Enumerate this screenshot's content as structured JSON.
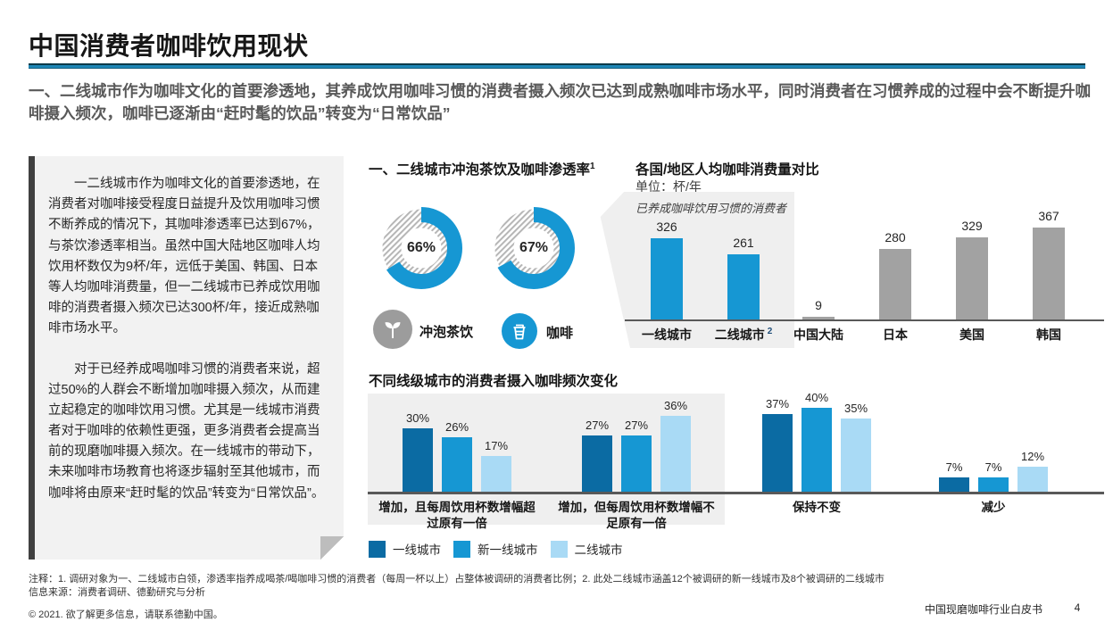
{
  "page": {
    "title": "中国消费者咖啡饮用现状",
    "subtitle": "一、二线城市作为咖啡文化的首要渗透地，其养成饮用咖啡习惯的消费者摄入频次已达到成熟咖啡市场水平，同时消费者在习惯养成的过程中会不断提升咖啡摄入频次，咖啡已逐渐由“赶时髦的饮品”转变为“日常饮品”"
  },
  "sidebar": {
    "p1": "一二线城市作为咖啡文化的首要渗透地，在消费者对咖啡接受程度日益提升及饮用咖啡习惯不断养成的情况下，其咖啡渗透率已达到67%，与茶饮渗透率相当。虽然中国大陆地区咖啡人均饮用杯数仅为9杯/年，远低于美国、韩国、日本等人均咖啡消费量，但一二线城市已养成饮用咖啡的消费者摄入频次已达300杯/年，接近成熟咖啡市场水平。",
    "p2": "对于已经养成喝咖啡习惯的消费者来说，超过50%的人群会不断增加咖啡摄入频次，从而建立起稳定的咖啡饮用习惯。尤其是一线城市消费者对于咖啡的依赖性更强，更多消费者会提高当前的现磨咖啡摄入频次。在一线城市的带动下，未来咖啡市场教育也将逐步辐射至其他城市，而咖啡将由原来“赶时髦的饮品”转变为“日常饮品”。"
  },
  "chart_data": [
    {
      "type": "donut",
      "title": "一、二线城市冲泡茶饮及咖啡渗透率",
      "title_sup": "1",
      "arc_color": "#1697d3",
      "track_style": "diagonal-hatch",
      "track_stripe_color": "#b5b5b5",
      "donuts": [
        {
          "label": "冲泡茶饮",
          "value_pct": 66,
          "icon": "tea-sprout-icon",
          "icon_bg": "#9c9c9c"
        },
        {
          "label": "咖啡",
          "value_pct": 67,
          "icon": "coffee-cup-icon",
          "icon_bg": "#1697d3"
        }
      ]
    },
    {
      "type": "bar",
      "title": "各国/地区人均咖啡消费量对比",
      "unit_label": "单位：杯/年",
      "callout_label": "已养成咖啡饮用习惯的消费者",
      "categories": [
        "一线城市",
        "二线城市",
        "中国大陆",
        "日本",
        "美国",
        "韩国"
      ],
      "category_sups": [
        "",
        "2",
        "",
        "",
        "",
        ""
      ],
      "values": [
        326,
        261,
        9,
        280,
        329,
        367
      ],
      "highlighted_indices": [
        0,
        1
      ],
      "highlight_color": "#1697d3",
      "default_color": "#a2a2a2",
      "ylim": [
        0,
        380
      ],
      "grid": false
    },
    {
      "type": "grouped-bar",
      "title": "不同线级城市的消费者摄入咖啡频次变化",
      "unit": "%",
      "categories": [
        "增加，且每周饮用杯数增幅超过原有一倍",
        "增加，但每周饮用杯数增幅不足原有一倍",
        "保持不变",
        "减少"
      ],
      "series": [
        {
          "name": "一线城市",
          "color": "#0b6ba3",
          "values": [
            30,
            27,
            37,
            7
          ]
        },
        {
          "name": "新一线城市",
          "color": "#1697d3",
          "values": [
            26,
            27,
            40,
            7
          ]
        },
        {
          "name": "二线城市",
          "color": "#a9daf5",
          "values": [
            17,
            36,
            35,
            12
          ]
        }
      ],
      "highlighted_category_indices": [
        0,
        1
      ],
      "legend_position": "bottom",
      "ylim": [
        0,
        45
      ]
    }
  ],
  "footer": {
    "note": "注释：1. 调研对象为一、二线城市白领，渗透率指养成喝茶/喝咖啡习惯的消费者（每周一杯以上）占整体被调研的消费者比例；2. 此处二线城市涵盖12个被调研的新一线城市及8个被调研的二线城市",
    "source": "信息来源：消费者调研、德勤研究与分析",
    "copyright": "© 2021. 欲了解更多信息，请联系德勤中国。",
    "doc_title": "中国现磨咖啡行业白皮书",
    "page_number": "4"
  }
}
